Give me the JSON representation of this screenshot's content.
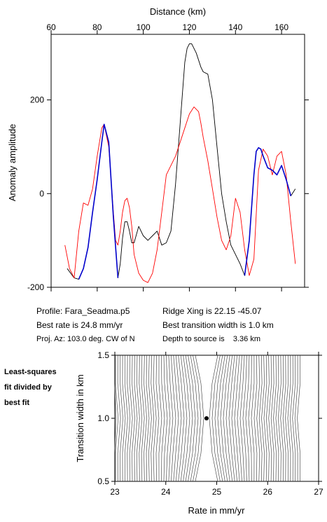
{
  "colors": {
    "observed": "#000000",
    "model": "#ff0000",
    "fit_segments": "#0000cc",
    "contours": "#333333"
  },
  "info": {
    "profile": "Profile: Fara_Seadma.p5",
    "best_rate": "Best rate is 24.8 mm/yr",
    "proj_az": "Proj. Az: 103.0 deg. CW of N",
    "ridge_xing": "Ridge Xing is 22.15 -45.07",
    "transition_width": "Best transition width is 1.0 km",
    "depth": "Depth to source is    3.36 km"
  },
  "side_note": [
    "Least-squares",
    "fit divided by",
    "best fit"
  ],
  "chart_data": [
    {
      "type": "line",
      "xlabel": "Distance (km)",
      "ylabel": "Anomaly amplitude",
      "xlim": [
        60,
        170
      ],
      "ylim": [
        -200,
        340
      ],
      "x_ticks": [
        60,
        80,
        100,
        120,
        140,
        160
      ],
      "y_ticks": [
        -200,
        0,
        200
      ],
      "grid": false,
      "series": [
        {
          "role": "observed",
          "x": [
            67,
            70,
            72,
            74,
            76,
            78,
            80,
            82,
            83,
            85,
            87,
            89,
            90,
            91,
            92,
            93,
            94,
            95,
            96,
            98,
            100,
            102,
            104,
            106,
            108,
            110,
            112,
            114,
            116,
            118,
            119,
            120,
            121,
            123,
            125,
            126,
            128,
            130,
            132,
            134,
            136,
            138,
            140,
            142,
            144,
            146,
            148,
            149,
            150,
            151,
            152,
            154,
            156,
            158,
            160,
            162,
            164,
            166
          ],
          "y": [
            -160,
            -180,
            -183,
            -160,
            -115,
            -40,
            30,
            110,
            148,
            110,
            -50,
            -180,
            -150,
            -95,
            -60,
            -60,
            -80,
            -105,
            -105,
            -70,
            -90,
            -100,
            -90,
            -80,
            -110,
            -105,
            -80,
            20,
            150,
            280,
            310,
            320,
            320,
            300,
            270,
            260,
            255,
            200,
            100,
            0,
            -60,
            -110,
            -130,
            -150,
            -175,
            -100,
            40,
            90,
            98,
            95,
            80,
            55,
            50,
            40,
            60,
            30,
            -5,
            10
          ]
        },
        {
          "role": "model",
          "x": [
            66,
            68,
            70,
            72,
            74,
            76,
            78,
            80,
            82,
            83,
            85,
            87,
            88,
            89,
            90,
            91,
            92,
            93,
            94,
            95,
            96,
            98,
            100,
            102,
            104,
            106,
            108,
            110,
            112,
            114,
            116,
            118,
            120,
            122,
            124,
            125,
            126,
            128,
            130,
            132,
            134,
            136,
            138,
            140,
            142,
            144,
            146,
            148,
            150,
            152,
            154,
            156,
            158,
            160,
            162,
            164,
            166
          ],
          "y": [
            -110,
            -160,
            -180,
            -80,
            -20,
            -25,
            10,
            80,
            140,
            148,
            100,
            -40,
            -100,
            -110,
            -80,
            -40,
            -15,
            -10,
            -30,
            -70,
            -130,
            -170,
            -185,
            -190,
            -170,
            -120,
            -40,
            40,
            60,
            80,
            110,
            140,
            170,
            185,
            175,
            150,
            120,
            70,
            10,
            -50,
            -100,
            -120,
            -90,
            -10,
            -40,
            -120,
            -175,
            -140,
            50,
            95,
            80,
            40,
            80,
            90,
            40,
            -60,
            -150
          ]
        },
        {
          "role": "fit-segment",
          "x": [
            72,
            74,
            76,
            78,
            80,
            82,
            83,
            85,
            87,
            89
          ],
          "y": [
            -183,
            -160,
            -115,
            -40,
            30,
            110,
            148,
            110,
            -50,
            -180
          ]
        },
        {
          "role": "fit-segment",
          "x": [
            144,
            146,
            148,
            149,
            150,
            151,
            152,
            154,
            156,
            158,
            160,
            162,
            164
          ],
          "y": [
            -175,
            -100,
            40,
            90,
            98,
            95,
            80,
            55,
            50,
            40,
            60,
            30,
            -5
          ]
        }
      ]
    },
    {
      "type": "contour",
      "xlabel": "Rate in mm/yr",
      "ylabel": "Transition width in km",
      "xlim": [
        23,
        27
      ],
      "ylim": [
        0.5,
        1.5
      ],
      "x_ticks": [
        23,
        24,
        25,
        26,
        27
      ],
      "y_ticks": [
        0.5,
        1.0,
        1.5
      ],
      "best_fit": {
        "rate": 24.8,
        "width": 1.0
      }
    }
  ]
}
